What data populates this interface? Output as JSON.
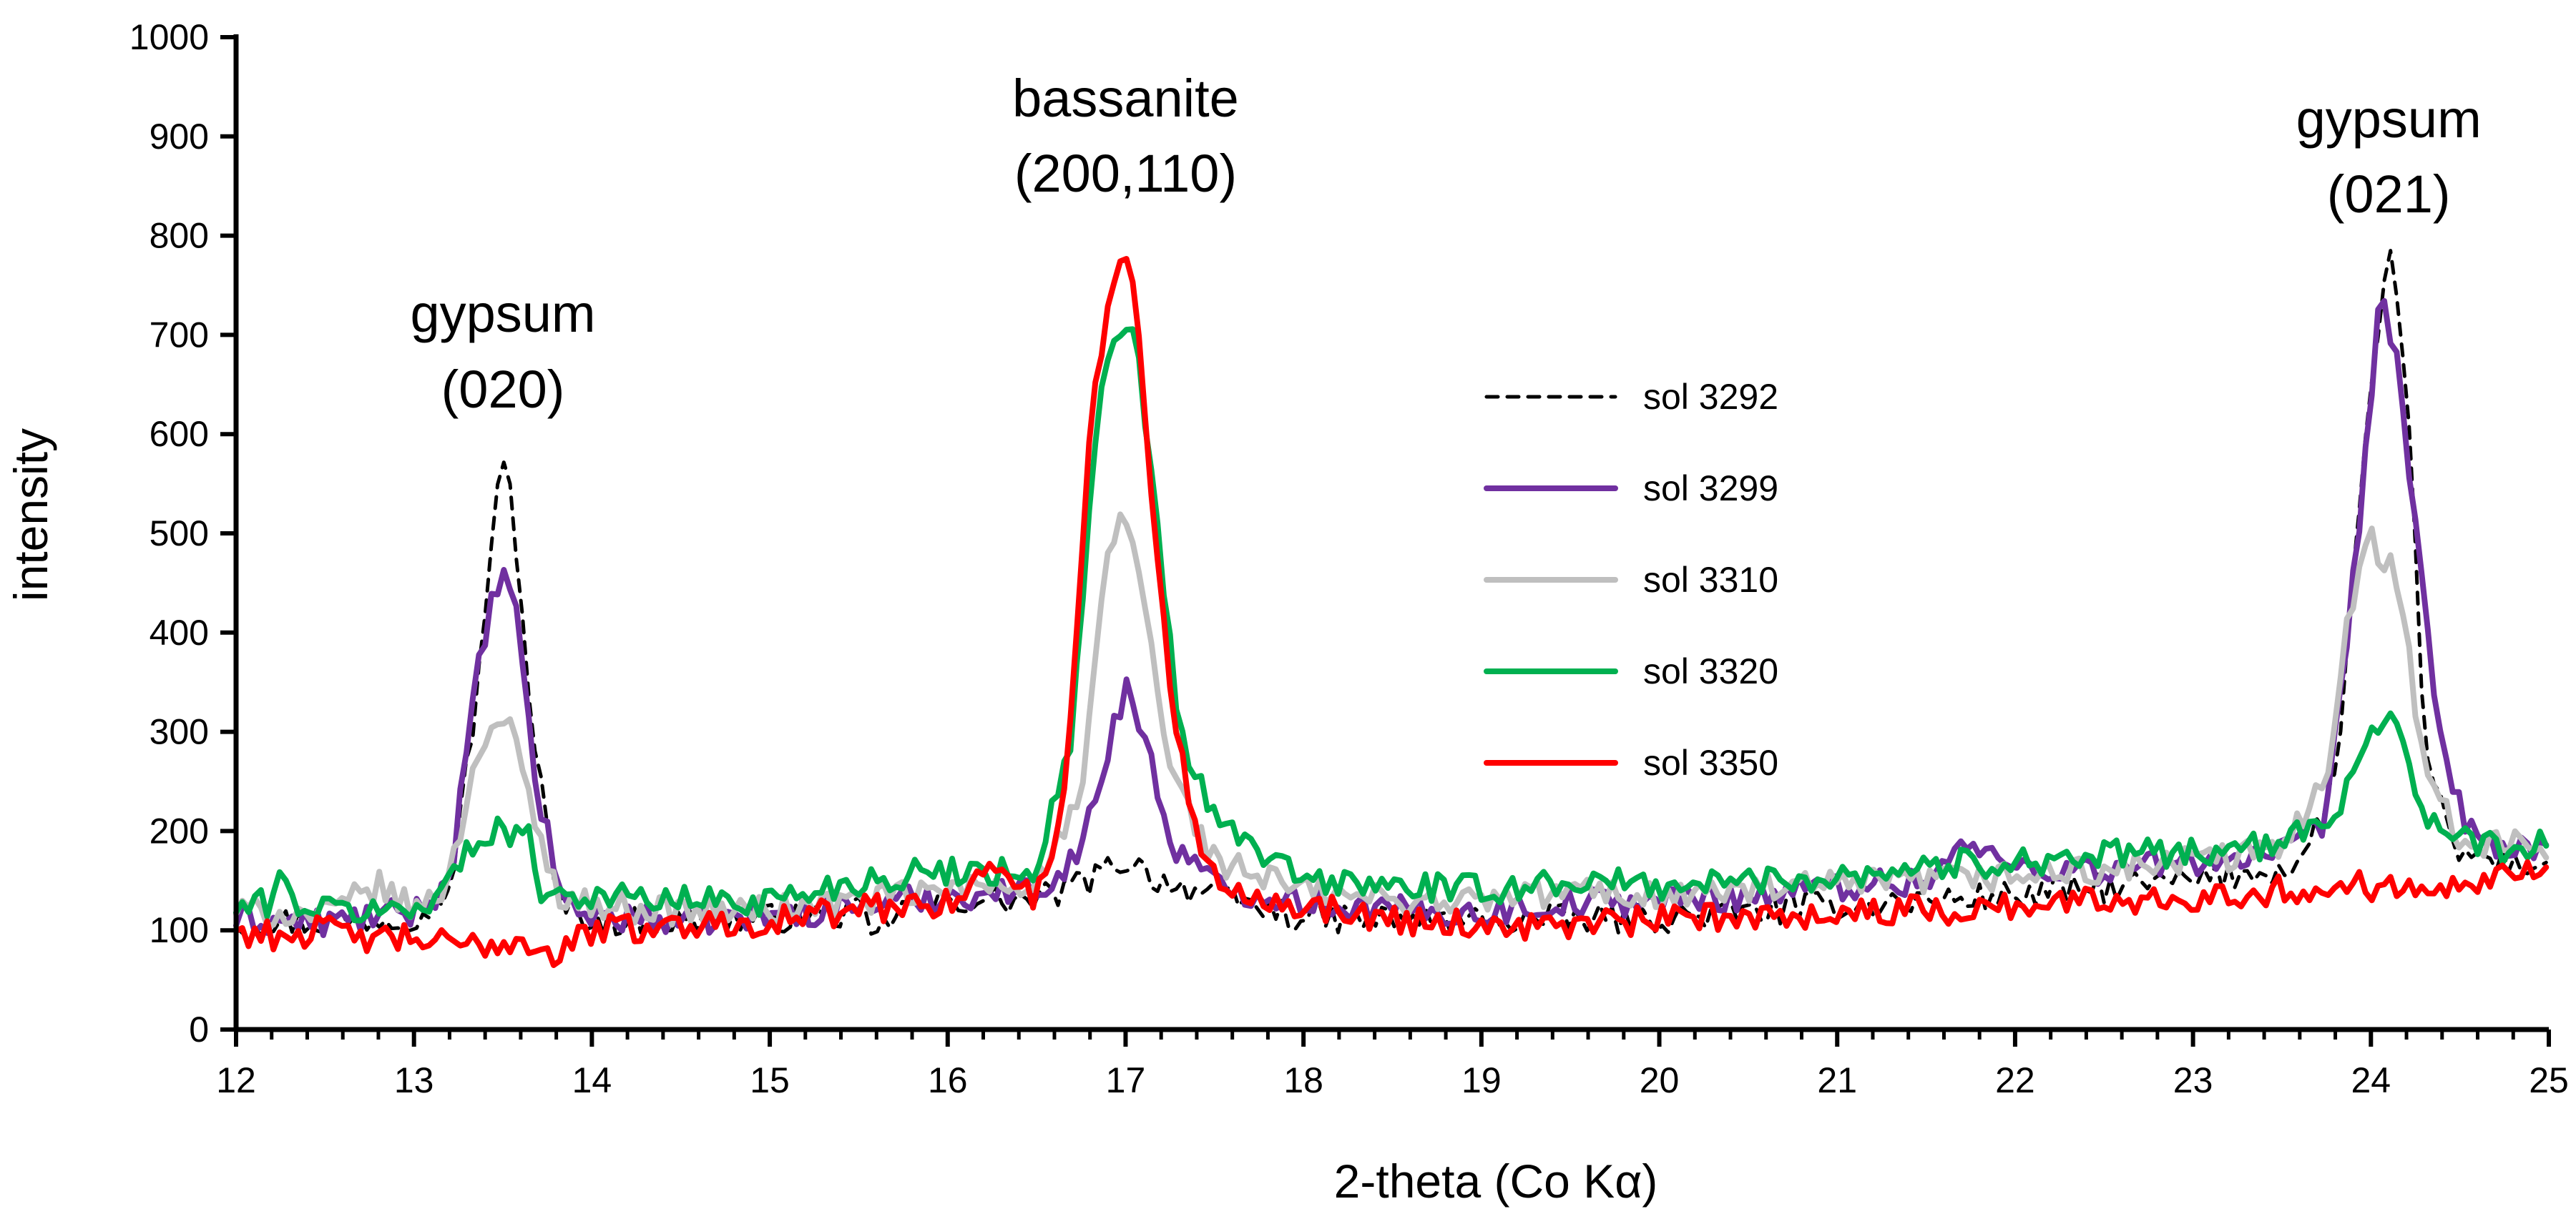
{
  "chart_data": {
    "type": "line",
    "title": "",
    "xlabel": "2-theta (Co Kα)",
    "ylabel": "intensity",
    "xlim": [
      12,
      25
    ],
    "ylim": [
      0,
      1000
    ],
    "x_ticks": [
      12,
      13,
      14,
      15,
      16,
      17,
      18,
      19,
      20,
      21,
      22,
      23,
      24,
      25
    ],
    "y_ticks": [
      0,
      100,
      200,
      300,
      400,
      500,
      600,
      700,
      800,
      900,
      1000
    ],
    "grid": false,
    "legend_position": "center-right",
    "annotations": [
      {
        "lines": [
          "gypsum",
          "(020)"
        ],
        "x": 13.5
      },
      {
        "lines": [
          "bassanite",
          "(200,110)"
        ],
        "x": 17.0
      },
      {
        "lines": [
          "gypsum",
          "(021)"
        ],
        "x": 24.1
      }
    ],
    "series": [
      {
        "name": "sol 3292",
        "color": "#000000",
        "dashed": true,
        "points": [
          [
            12,
            110
          ],
          [
            12.5,
            108
          ],
          [
            13,
            115
          ],
          [
            13.2,
            140
          ],
          [
            13.35,
            330
          ],
          [
            13.45,
            520
          ],
          [
            13.5,
            565
          ],
          [
            13.55,
            540
          ],
          [
            13.65,
            330
          ],
          [
            13.8,
            130
          ],
          [
            14,
            110
          ],
          [
            14.5,
            108
          ],
          [
            15,
            112
          ],
          [
            15.5,
            118
          ],
          [
            15.6,
            90
          ],
          [
            15.7,
            120
          ],
          [
            16,
            130
          ],
          [
            16.5,
            130
          ],
          [
            16.8,
            150
          ],
          [
            17,
            172
          ],
          [
            17.2,
            150
          ],
          [
            17.5,
            135
          ],
          [
            18,
            112
          ],
          [
            19,
            110
          ],
          [
            20,
            112
          ],
          [
            21,
            125
          ],
          [
            22,
            135
          ],
          [
            23,
            150
          ],
          [
            23.6,
            165
          ],
          [
            23.8,
            250
          ],
          [
            23.95,
            560
          ],
          [
            24.1,
            785
          ],
          [
            24.2,
            650
          ],
          [
            24.3,
            300
          ],
          [
            24.45,
            180
          ],
          [
            24.7,
            170
          ],
          [
            25,
            165
          ]
        ]
      },
      {
        "name": "sol 3299",
        "color": "#7030a0",
        "dashed": false,
        "points": [
          [
            12,
            110
          ],
          [
            12.5,
            108
          ],
          [
            13,
            118
          ],
          [
            13.2,
            150
          ],
          [
            13.35,
            350
          ],
          [
            13.45,
            440
          ],
          [
            13.5,
            460
          ],
          [
            13.58,
            410
          ],
          [
            13.7,
            230
          ],
          [
            13.85,
            125
          ],
          [
            14,
            115
          ],
          [
            14.5,
            110
          ],
          [
            15,
            115
          ],
          [
            15.5,
            125
          ],
          [
            16,
            135
          ],
          [
            16.5,
            140
          ],
          [
            16.75,
            180
          ],
          [
            16.9,
            280
          ],
          [
            17,
            350
          ],
          [
            17.1,
            300
          ],
          [
            17.25,
            190
          ],
          [
            17.5,
            145
          ],
          [
            18,
            130
          ],
          [
            18.5,
            120
          ],
          [
            19,
            118
          ],
          [
            19.5,
            128
          ],
          [
            20,
            130
          ],
          [
            20.5,
            135
          ],
          [
            21,
            145
          ],
          [
            21.5,
            150
          ],
          [
            21.7,
            185
          ],
          [
            22,
            165
          ],
          [
            22.5,
            160
          ],
          [
            23,
            170
          ],
          [
            23.5,
            175
          ],
          [
            23.75,
            210
          ],
          [
            23.9,
            450
          ],
          [
            24.05,
            735
          ],
          [
            24.15,
            680
          ],
          [
            24.25,
            500
          ],
          [
            24.38,
            300
          ],
          [
            24.55,
            200
          ],
          [
            24.8,
            180
          ],
          [
            25,
            175
          ]
        ]
      },
      {
        "name": "sol 3310",
        "color": "#bfbfbf",
        "dashed": false,
        "points": [
          [
            12,
            120
          ],
          [
            12.5,
            115
          ],
          [
            12.8,
            145
          ],
          [
            13,
            120
          ],
          [
            13.2,
            150
          ],
          [
            13.35,
            280
          ],
          [
            13.45,
            310
          ],
          [
            13.55,
            300
          ],
          [
            13.65,
            230
          ],
          [
            13.8,
            140
          ],
          [
            14,
            125
          ],
          [
            14.5,
            120
          ],
          [
            15,
            120
          ],
          [
            15.5,
            130
          ],
          [
            16,
            140
          ],
          [
            16.5,
            150
          ],
          [
            16.75,
            230
          ],
          [
            16.9,
            480
          ],
          [
            17,
            520
          ],
          [
            17.1,
            440
          ],
          [
            17.25,
            260
          ],
          [
            17.5,
            170
          ],
          [
            18,
            140
          ],
          [
            18.5,
            130
          ],
          [
            19,
            130
          ],
          [
            19.5,
            140
          ],
          [
            20,
            135
          ],
          [
            20.5,
            140
          ],
          [
            21,
            145
          ],
          [
            21.5,
            150
          ],
          [
            22,
            155
          ],
          [
            22.5,
            160
          ],
          [
            23,
            170
          ],
          [
            23.5,
            180
          ],
          [
            23.75,
            260
          ],
          [
            23.88,
            420
          ],
          [
            24,
            510
          ],
          [
            24.06,
            470
          ],
          [
            24.12,
            485
          ],
          [
            24.2,
            400
          ],
          [
            24.3,
            260
          ],
          [
            24.5,
            190
          ],
          [
            24.8,
            185
          ],
          [
            25,
            185
          ]
        ]
      },
      {
        "name": "sol 3320",
        "color": "#00b050",
        "dashed": false,
        "points": [
          [
            12,
            120
          ],
          [
            12.2,
            130
          ],
          [
            12.25,
            160
          ],
          [
            12.3,
            130
          ],
          [
            12.5,
            120
          ],
          [
            13,
            120
          ],
          [
            13.2,
            150
          ],
          [
            13.35,
            190
          ],
          [
            13.45,
            205
          ],
          [
            13.55,
            200
          ],
          [
            13.65,
            190
          ],
          [
            13.72,
            140
          ],
          [
            14,
            135
          ],
          [
            14.5,
            130
          ],
          [
            15,
            130
          ],
          [
            15.5,
            150
          ],
          [
            16,
            160
          ],
          [
            16.5,
            160
          ],
          [
            16.7,
            300
          ],
          [
            16.85,
            640
          ],
          [
            16.95,
            690
          ],
          [
            17.05,
            700
          ],
          [
            17.15,
            560
          ],
          [
            17.3,
            300
          ],
          [
            17.5,
            210
          ],
          [
            18,
            150
          ],
          [
            18.5,
            145
          ],
          [
            19,
            140
          ],
          [
            19.5,
            150
          ],
          [
            20,
            145
          ],
          [
            20.5,
            150
          ],
          [
            21,
            155
          ],
          [
            21.5,
            165
          ],
          [
            22,
            170
          ],
          [
            22.5,
            175
          ],
          [
            23,
            180
          ],
          [
            23.5,
            185
          ],
          [
            23.8,
            220
          ],
          [
            23.95,
            285
          ],
          [
            24.1,
            320
          ],
          [
            24.2,
            290
          ],
          [
            24.3,
            210
          ],
          [
            24.5,
            190
          ],
          [
            24.8,
            180
          ],
          [
            25,
            190
          ]
        ]
      },
      {
        "name": "sol 3350",
        "color": "#ff0000",
        "dashed": false,
        "points": [
          [
            12,
            100
          ],
          [
            12.2,
            95
          ],
          [
            12.5,
            100
          ],
          [
            12.8,
            90
          ],
          [
            13,
            92
          ],
          [
            13.3,
            82
          ],
          [
            13.5,
            90
          ],
          [
            13.7,
            85
          ],
          [
            13.8,
            75
          ],
          [
            14,
            100
          ],
          [
            14.5,
            105
          ],
          [
            15,
            110
          ],
          [
            15.5,
            120
          ],
          [
            16,
            130
          ],
          [
            16.3,
            165
          ],
          [
            16.5,
            130
          ],
          [
            16.65,
            220
          ],
          [
            16.8,
            600
          ],
          [
            16.9,
            740
          ],
          [
            17,
            785
          ],
          [
            17.08,
            700
          ],
          [
            17.2,
            420
          ],
          [
            17.35,
            230
          ],
          [
            17.5,
            150
          ],
          [
            18,
            125
          ],
          [
            18.5,
            112
          ],
          [
            19,
            105
          ],
          [
            19.5,
            105
          ],
          [
            20,
            110
          ],
          [
            20.5,
            115
          ],
          [
            21,
            118
          ],
          [
            21.5,
            120
          ],
          [
            22,
            125
          ],
          [
            22.5,
            130
          ],
          [
            23,
            135
          ],
          [
            23.5,
            140
          ],
          [
            24,
            145
          ],
          [
            24.5,
            150
          ],
          [
            24.8,
            160
          ],
          [
            25,
            160
          ]
        ]
      }
    ]
  }
}
